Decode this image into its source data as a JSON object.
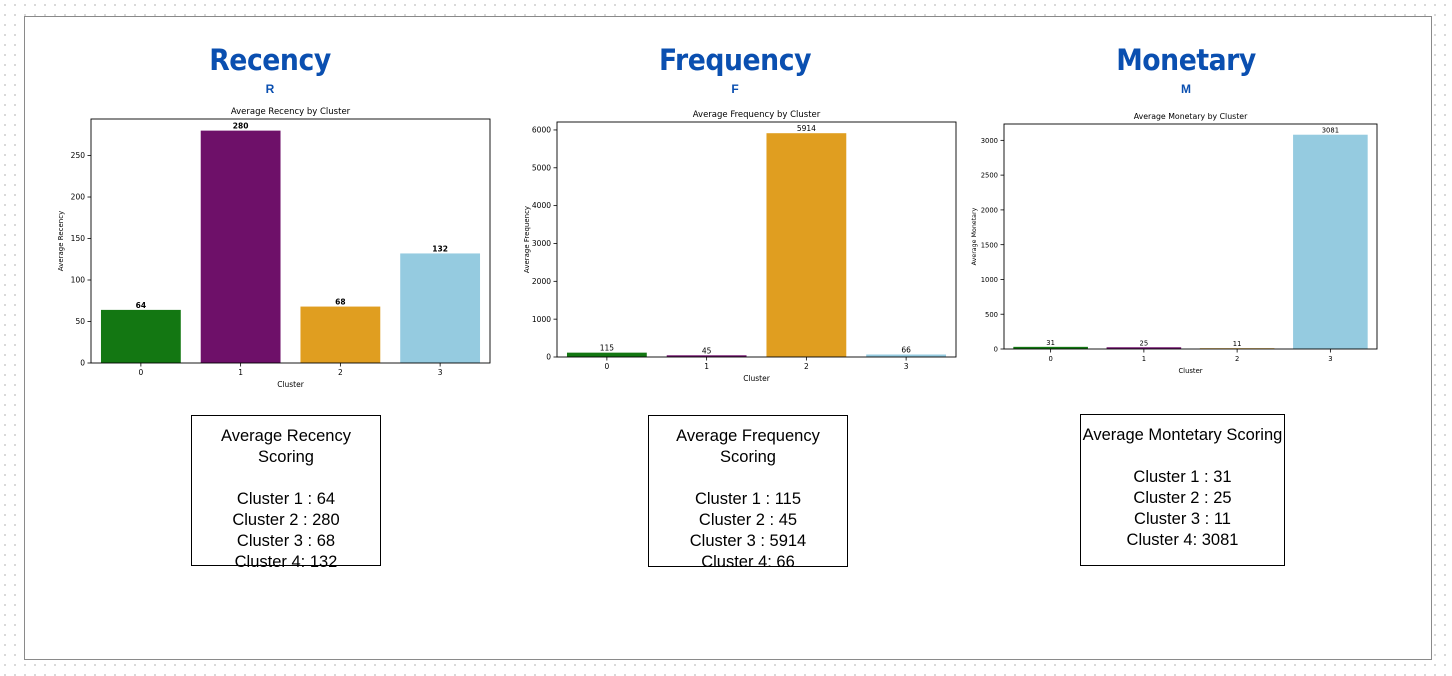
{
  "panels": [
    {
      "heading": "Recency",
      "letter": "R",
      "score_title": "Average Recency Scoring",
      "score_lines": [
        "Cluster 1 : 64",
        "Cluster 2 : 280",
        "Cluster 3 : 68",
        "Cluster 4: 132"
      ]
    },
    {
      "heading": "Frequency",
      "letter": "F",
      "score_title": "Average Frequency Scoring",
      "score_lines": [
        "Cluster 1 : 115",
        "Cluster 2 : 45",
        "Cluster 3 : 5914",
        "Cluster 4: 66"
      ]
    },
    {
      "heading": "Monetary",
      "letter": "M",
      "score_title": "Average Montetary Scoring",
      "score_lines": [
        "Cluster 1 : 31",
        "Cluster 2 : 25",
        "Cluster 3 : 11",
        "Cluster 4: 3081"
      ]
    }
  ],
  "chart_data": [
    {
      "type": "bar",
      "title": "Average Recency by Cluster",
      "xlabel": "Cluster",
      "ylabel": "Average Recency",
      "categories": [
        "0",
        "1",
        "2",
        "3"
      ],
      "values": [
        64,
        280,
        68,
        132
      ],
      "data_labels": [
        "64",
        "280",
        "68",
        "132"
      ],
      "label_bold": true,
      "colors": [
        "#137712",
        "#6e1069",
        "#e09e20",
        "#95cbe0"
      ],
      "ylim": [
        0,
        294
      ],
      "yticks": [
        0,
        50,
        100,
        150,
        200,
        250
      ],
      "grid": false,
      "legend": "none"
    },
    {
      "type": "bar",
      "title": "Average Frequency by Cluster",
      "xlabel": "Cluster",
      "ylabel": "Average Frequency",
      "categories": [
        "0",
        "1",
        "2",
        "3"
      ],
      "values": [
        115,
        45,
        5914,
        66
      ],
      "data_labels": [
        "115",
        "45",
        "5914",
        "66"
      ],
      "label_bold": false,
      "colors": [
        "#137712",
        "#6e1069",
        "#e09e20",
        "#95cbe0"
      ],
      "ylim": [
        0,
        6210
      ],
      "yticks": [
        0,
        1000,
        2000,
        3000,
        4000,
        5000,
        6000
      ],
      "grid": false,
      "legend": "none"
    },
    {
      "type": "bar",
      "title": "Average Monetary by Cluster",
      "xlabel": "Cluster",
      "ylabel": "Average Monetary",
      "categories": [
        "0",
        "1",
        "2",
        "3"
      ],
      "values": [
        31,
        25,
        11,
        3081
      ],
      "data_labels": [
        "31",
        "25",
        "11",
        "3081"
      ],
      "label_bold": false,
      "colors": [
        "#137712",
        "#6e1069",
        "#e09e20",
        "#95cbe0"
      ],
      "ylim": [
        0,
        3235
      ],
      "yticks": [
        0,
        500,
        1000,
        1500,
        2000,
        2500,
        3000
      ],
      "grid": false,
      "legend": "none"
    }
  ]
}
